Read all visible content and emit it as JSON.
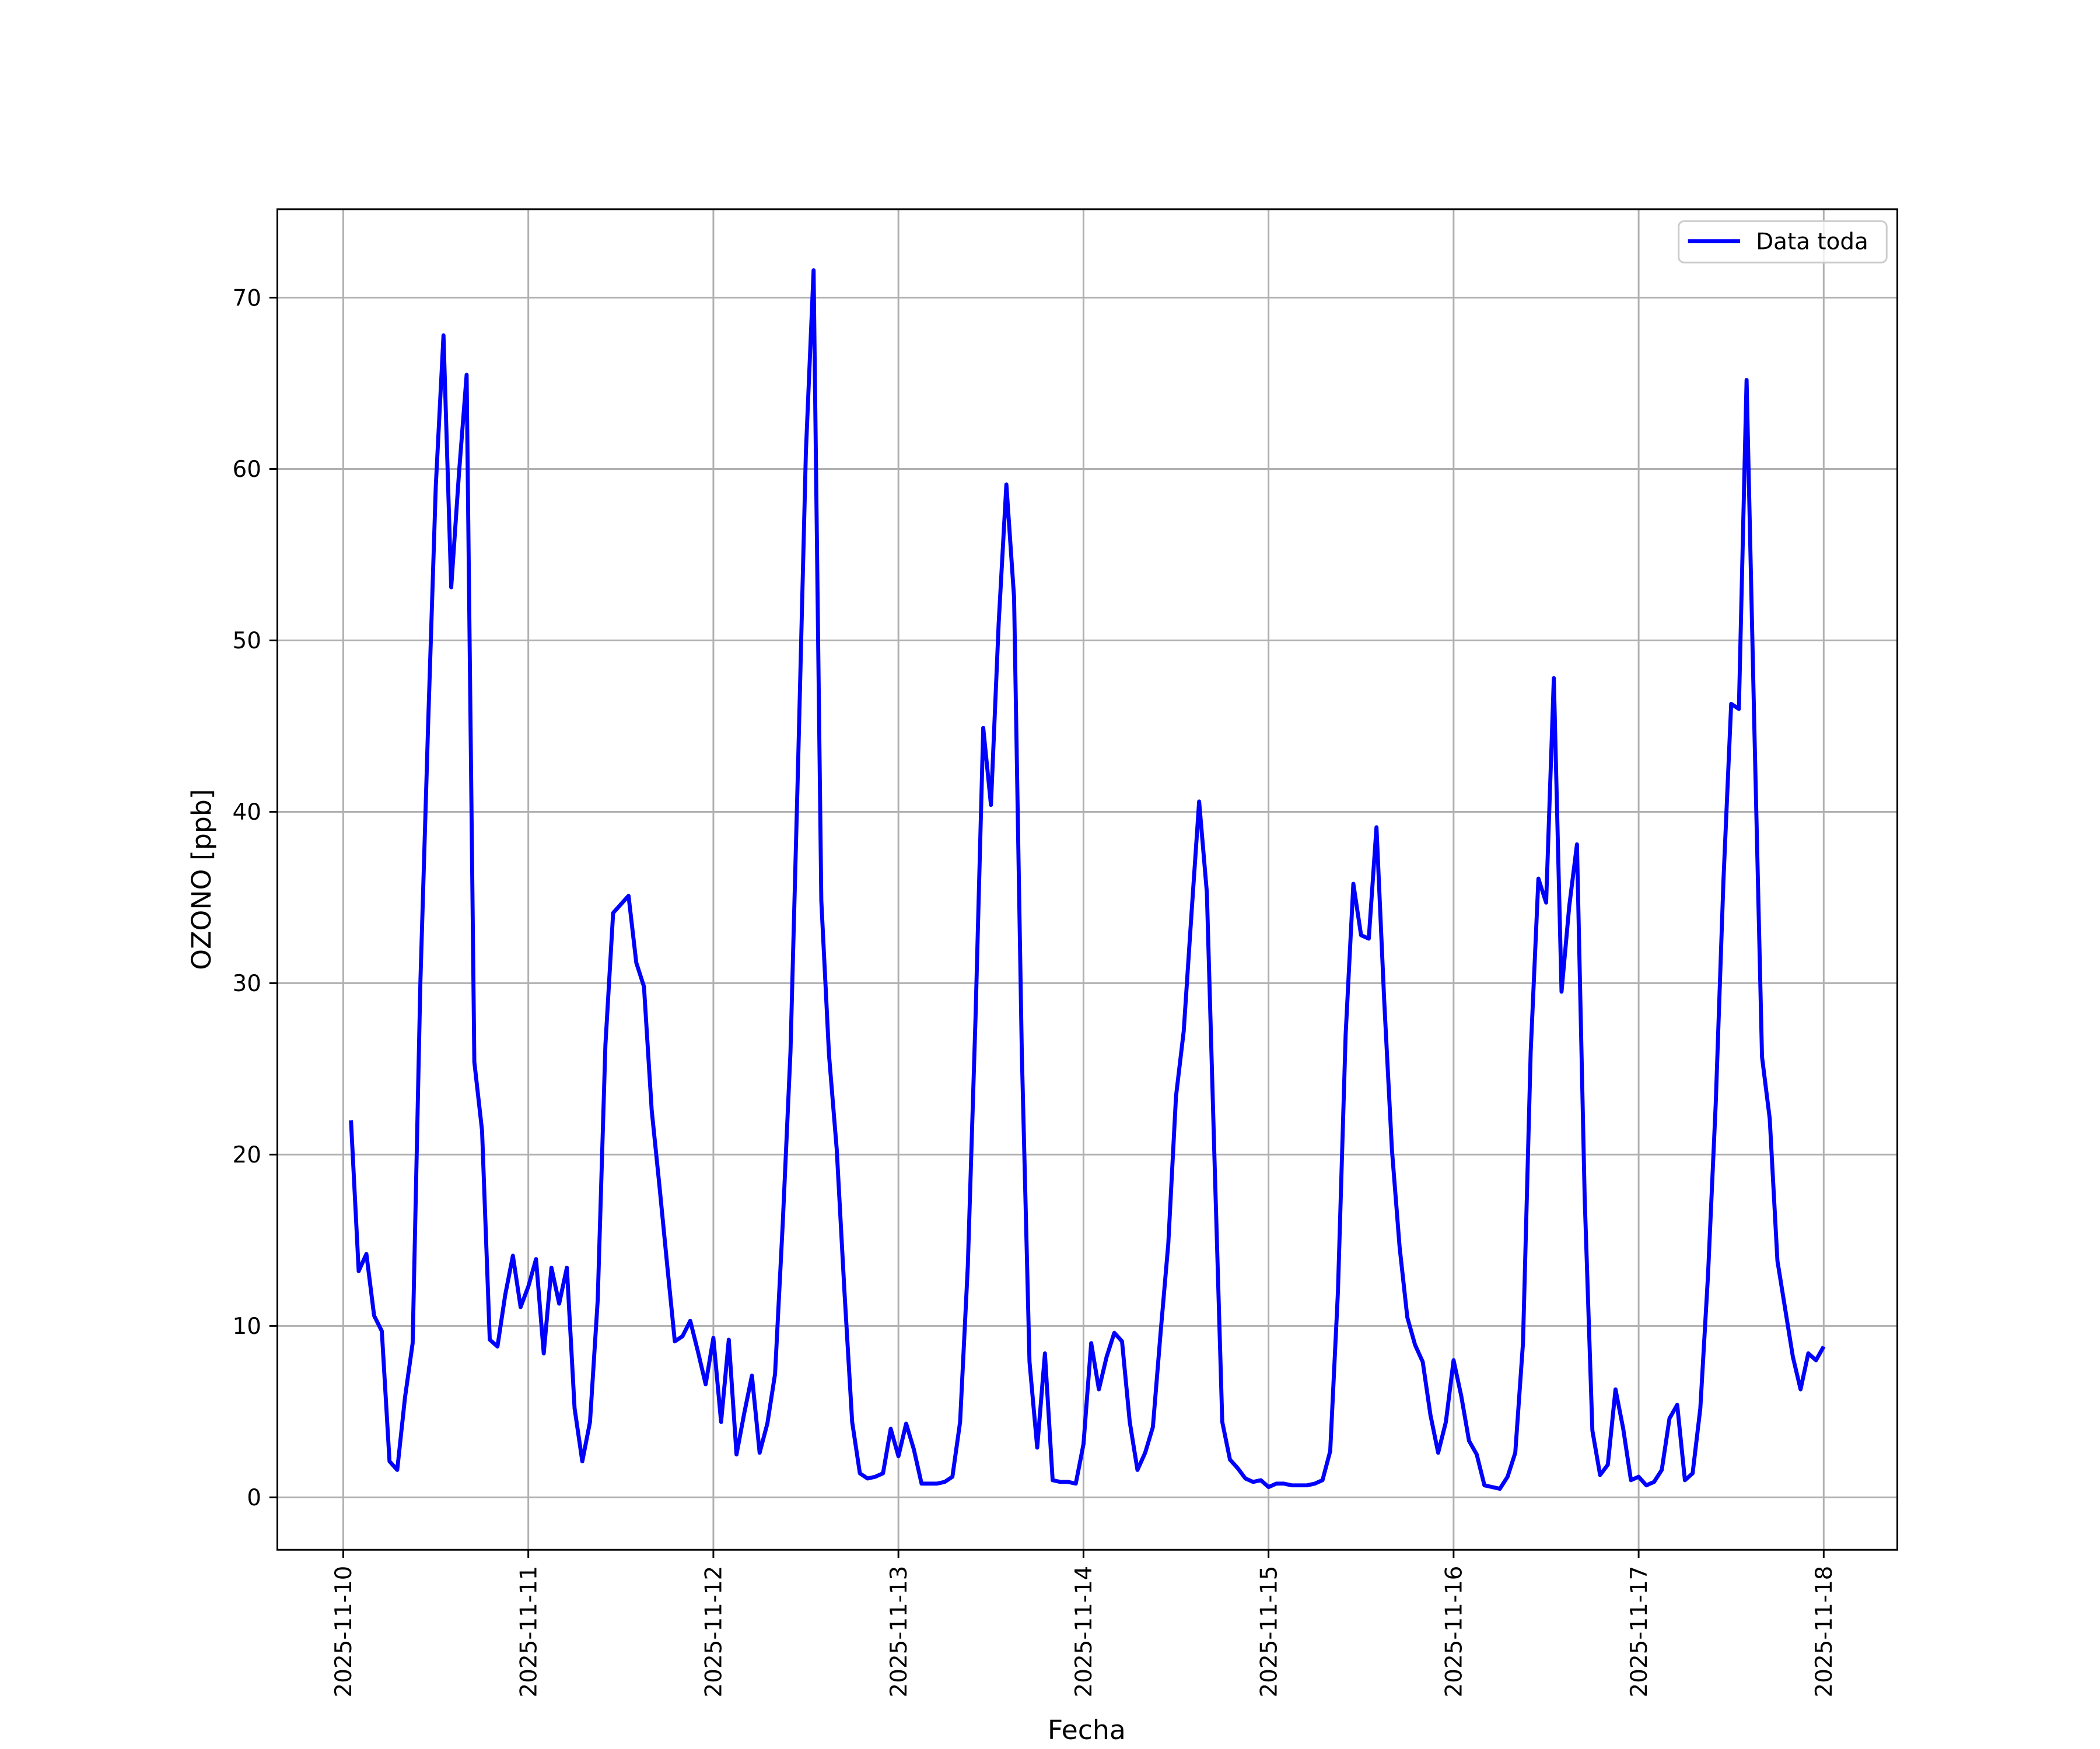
{
  "chart_data": {
    "type": "line",
    "xlabel": "Fecha",
    "ylabel": "OZONO [ppb]",
    "xlim": [
      "2025-11-09T15:27",
      "2025-11-18T09:33"
    ],
    "xticks": [
      "2025-11-10",
      "2025-11-11",
      "2025-11-12",
      "2025-11-13",
      "2025-11-14",
      "2025-11-15",
      "2025-11-16",
      "2025-11-17",
      "2025-11-18"
    ],
    "ylim": [
      -3.06,
      75.16
    ],
    "yticks": [
      0,
      10,
      20,
      30,
      40,
      50,
      60,
      70
    ],
    "grid": true,
    "legend": "upper right",
    "x": [
      "2025-11-10T01:00",
      "2025-11-10T02:00",
      "2025-11-10T03:00",
      "2025-11-10T04:00",
      "2025-11-10T05:00",
      "2025-11-10T06:00",
      "2025-11-10T07:00",
      "2025-11-10T08:00",
      "2025-11-10T09:00",
      "2025-11-10T10:00",
      "2025-11-10T11:00",
      "2025-11-10T12:00",
      "2025-11-10T13:00",
      "2025-11-10T14:00",
      "2025-11-10T15:00",
      "2025-11-10T16:00",
      "2025-11-10T17:00",
      "2025-11-10T18:00",
      "2025-11-10T19:00",
      "2025-11-10T20:00",
      "2025-11-10T21:00",
      "2025-11-10T22:00",
      "2025-11-10T23:00",
      "2025-11-11T00:00",
      "2025-11-11T01:00",
      "2025-11-11T02:00",
      "2025-11-11T03:00",
      "2025-11-11T04:00",
      "2025-11-11T05:00",
      "2025-11-11T06:00",
      "2025-11-11T07:00",
      "2025-11-11T08:00",
      "2025-11-11T09:00",
      "2025-11-11T10:00",
      "2025-11-11T11:00",
      "2025-11-11T12:00",
      "2025-11-11T13:00",
      "2025-11-11T14:00",
      "2025-11-11T15:00",
      "2025-11-11T16:00",
      "2025-11-11T17:00",
      "2025-11-11T18:00",
      "2025-11-11T19:00",
      "2025-11-11T20:00",
      "2025-11-11T21:00",
      "2025-11-11T22:00",
      "2025-11-11T23:00",
      "2025-11-12T00:00",
      "2025-11-12T01:00",
      "2025-11-12T02:00",
      "2025-11-12T03:00",
      "2025-11-12T04:00",
      "2025-11-12T05:00",
      "2025-11-12T06:00",
      "2025-11-12T07:00",
      "2025-11-12T08:00",
      "2025-11-12T09:00",
      "2025-11-12T10:00",
      "2025-11-12T11:00",
      "2025-11-12T12:00",
      "2025-11-12T13:00",
      "2025-11-12T14:00",
      "2025-11-12T15:00",
      "2025-11-12T16:00",
      "2025-11-12T17:00",
      "2025-11-12T18:00",
      "2025-11-12T19:00",
      "2025-11-12T20:00",
      "2025-11-12T21:00",
      "2025-11-12T22:00",
      "2025-11-12T23:00",
      "2025-11-13T00:00",
      "2025-11-13T01:00",
      "2025-11-13T02:00",
      "2025-11-13T03:00",
      "2025-11-13T04:00",
      "2025-11-13T05:00",
      "2025-11-13T06:00",
      "2025-11-13T07:00",
      "2025-11-13T08:00",
      "2025-11-13T09:00",
      "2025-11-13T10:00",
      "2025-11-13T11:00",
      "2025-11-13T12:00",
      "2025-11-13T13:00",
      "2025-11-13T14:00",
      "2025-11-13T15:00",
      "2025-11-13T16:00",
      "2025-11-13T17:00",
      "2025-11-13T18:00",
      "2025-11-13T19:00",
      "2025-11-13T20:00",
      "2025-11-13T21:00",
      "2025-11-13T22:00",
      "2025-11-13T23:00",
      "2025-11-14T00:00",
      "2025-11-14T01:00",
      "2025-11-14T02:00",
      "2025-11-14T03:00",
      "2025-11-14T04:00",
      "2025-11-14T05:00",
      "2025-11-14T06:00",
      "2025-11-14T07:00",
      "2025-11-14T08:00",
      "2025-11-14T09:00",
      "2025-11-14T10:00",
      "2025-11-14T11:00",
      "2025-11-14T12:00",
      "2025-11-14T13:00",
      "2025-11-14T14:00",
      "2025-11-14T15:00",
      "2025-11-14T16:00",
      "2025-11-14T17:00",
      "2025-11-14T18:00",
      "2025-11-14T19:00",
      "2025-11-14T20:00",
      "2025-11-14T21:00",
      "2025-11-14T22:00",
      "2025-11-14T23:00",
      "2025-11-15T00:00",
      "2025-11-15T01:00",
      "2025-11-15T02:00",
      "2025-11-15T03:00",
      "2025-11-15T04:00",
      "2025-11-15T05:00",
      "2025-11-15T06:00",
      "2025-11-15T07:00",
      "2025-11-15T08:00",
      "2025-11-15T09:00",
      "2025-11-15T10:00",
      "2025-11-15T11:00",
      "2025-11-15T12:00",
      "2025-11-15T13:00",
      "2025-11-15T14:00",
      "2025-11-15T15:00",
      "2025-11-15T16:00",
      "2025-11-15T17:00",
      "2025-11-15T18:00",
      "2025-11-15T19:00",
      "2025-11-15T20:00",
      "2025-11-15T21:00",
      "2025-11-15T22:00",
      "2025-11-15T23:00",
      "2025-11-16T00:00",
      "2025-11-16T01:00",
      "2025-11-16T02:00",
      "2025-11-16T03:00",
      "2025-11-16T04:00",
      "2025-11-16T05:00",
      "2025-11-16T06:00",
      "2025-11-16T07:00",
      "2025-11-16T08:00",
      "2025-11-16T09:00",
      "2025-11-16T10:00",
      "2025-11-16T11:00",
      "2025-11-16T12:00",
      "2025-11-16T13:00",
      "2025-11-16T14:00",
      "2025-11-16T15:00",
      "2025-11-16T16:00",
      "2025-11-16T17:00",
      "2025-11-16T18:00",
      "2025-11-16T19:00",
      "2025-11-16T20:00",
      "2025-11-16T21:00",
      "2025-11-16T22:00",
      "2025-11-16T23:00",
      "2025-11-17T00:00",
      "2025-11-17T01:00",
      "2025-11-17T02:00",
      "2025-11-17T03:00",
      "2025-11-17T04:00",
      "2025-11-17T05:00",
      "2025-11-17T06:00",
      "2025-11-17T07:00",
      "2025-11-17T08:00",
      "2025-11-17T09:00",
      "2025-11-17T10:00",
      "2025-11-17T11:00",
      "2025-11-17T12:00",
      "2025-11-17T13:00",
      "2025-11-17T14:00",
      "2025-11-17T15:00",
      "2025-11-17T16:00",
      "2025-11-17T17:00",
      "2025-11-17T18:00",
      "2025-11-17T19:00",
      "2025-11-17T20:00",
      "2025-11-17T21:00",
      "2025-11-17T22:00",
      "2025-11-17T23:00",
      "2025-11-18T00:00"
    ],
    "series": [
      {
        "name": "Data toda",
        "color": "#0000ff",
        "values": [
          22.0,
          13.2,
          14.2,
          10.6,
          9.7,
          2.1,
          1.6,
          5.8,
          9.0,
          30,
          45,
          59,
          67.8,
          53.1,
          59.7,
          65.5,
          25.4,
          21.4,
          9.2,
          8.8,
          11.8,
          14.1,
          11.1,
          12.3,
          13.9,
          8.4,
          13.4,
          11.3,
          13.4,
          5.2,
          2.1,
          4.4,
          11.5,
          26.4,
          34.1,
          34.6,
          35.1,
          31.2,
          29.8,
          22.6,
          18.2,
          13.6,
          9.1,
          9.4,
          10.3,
          8.5,
          6.6,
          9.3,
          4.4,
          9.2,
          2.5,
          4.9,
          7.1,
          2.6,
          4.3,
          7.2,
          16,
          26,
          43,
          61,
          71.6,
          34.8,
          25.8,
          20.3,
          12,
          4.4,
          1.4,
          1.1,
          1.2,
          1.4,
          4.0,
          2.4,
          4.3,
          2.8,
          0.8,
          0.8,
          0.8,
          0.9,
          1.2,
          4.4,
          13.5,
          28,
          44.9,
          40.4,
          51,
          59.1,
          52.5,
          26,
          7.9,
          2.9,
          8.4,
          1.0,
          0.9,
          0.9,
          0.8,
          3.1,
          9.0,
          6.3,
          8.2,
          9.6,
          9.1,
          4.4,
          1.6,
          2.6,
          4.1,
          9.6,
          14.8,
          23.4,
          27.2,
          34,
          40.6,
          35.3,
          19.6,
          4.4,
          2.2,
          1.7,
          1.1,
          0.9,
          1.0,
          0.6,
          0.8,
          0.8,
          0.7,
          0.7,
          0.7,
          0.8,
          1.0,
          2.7,
          12,
          27,
          35.8,
          32.8,
          32.6,
          39.1,
          29,
          20.3,
          14.6,
          10.5,
          8.9,
          7.9,
          4.8,
          2.6,
          4.4,
          8.0,
          5.9,
          3.3,
          2.5,
          0.7,
          0.6,
          0.5,
          1.2,
          2.6,
          9.0,
          26,
          36.1,
          34.7,
          47.8,
          29.5,
          34.5,
          38.1,
          17.5,
          3.9,
          1.3,
          1.9,
          6.3,
          4.0,
          1.0,
          1.2,
          0.7,
          0.9,
          1.6,
          4.6,
          5.4,
          1.0,
          1.4,
          5.2,
          13,
          23,
          36,
          46.3,
          46.0,
          65.2,
          45,
          25.7,
          22.1,
          13.8,
          11.0,
          8.2,
          6.3,
          8.4,
          8.0,
          8.8
        ]
      }
    ]
  }
}
